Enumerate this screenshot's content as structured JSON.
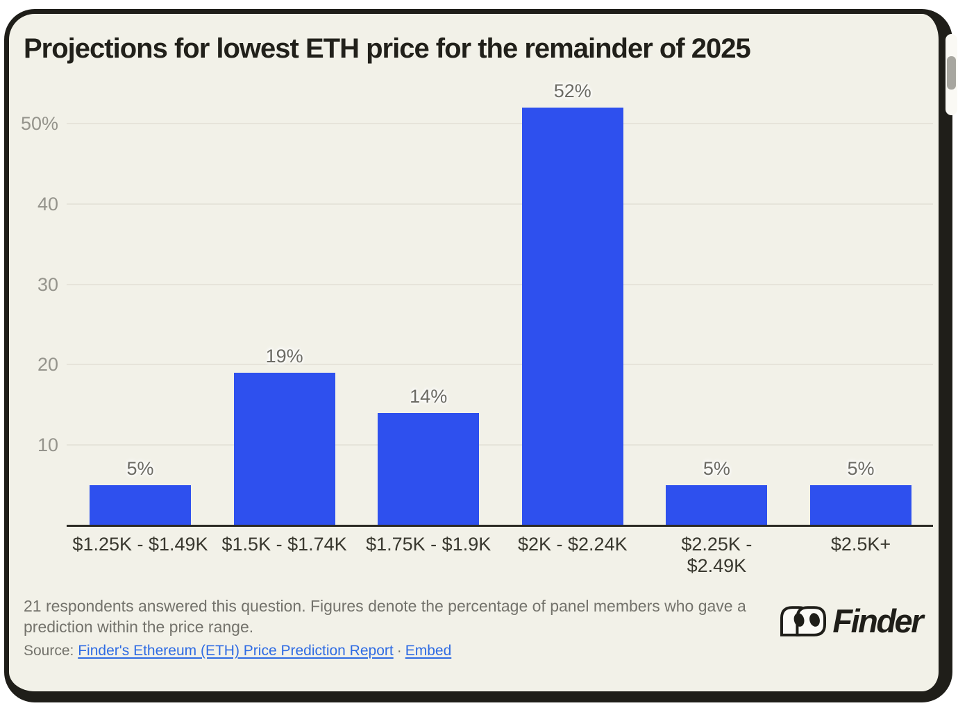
{
  "chart_data": {
    "type": "bar",
    "title": "Projections for lowest ETH price for the remainder of 2025",
    "categories": [
      "$1.25K - $1.49K",
      "$1.5K - $1.74K",
      "$1.75K - $1.9K",
      "$2K - $2.24K",
      "$2.25K - $2.49K",
      "$2.5K+"
    ],
    "category_labels": [
      "$1.25K - $1.49K",
      "$1.5K - $1.74K",
      "$1.75K - $1.9K",
      "$2K - $2.24K",
      "$2.25K -\n$2.49K",
      "$2.5K+"
    ],
    "values": [
      5,
      19,
      14,
      52,
      5,
      5
    ],
    "value_labels": [
      "5%",
      "19%",
      "14%",
      "52%",
      "5%",
      "5%"
    ],
    "y_ticks": [
      {
        "value": 50,
        "label": "50%"
      },
      {
        "value": 40,
        "label": "40"
      },
      {
        "value": 30,
        "label": "30"
      },
      {
        "value": 20,
        "label": "20"
      },
      {
        "value": 10,
        "label": "10"
      }
    ],
    "ylim": [
      0,
      55
    ],
    "xlabel": "",
    "ylabel": "",
    "grid": true,
    "legend": false,
    "bar_color": "#2E50EE"
  },
  "footer": {
    "note": "21 respondents answered this question. Figures denote the percentage of panel members who gave a prediction within the price range.",
    "source_prefix": "Source:",
    "source_link_label": "Finder's Ethereum (ETH) Price Prediction Report",
    "separator": "·",
    "embed_label": "Embed"
  },
  "logo": {
    "brand": "Finder"
  },
  "colors": {
    "page_bg": "#FFFFFF",
    "card_bg": "#F2F1E8",
    "border": "#1F1E19",
    "bar": "#2E50EE",
    "link": "#2E6BE3",
    "gridline": "#E6E4DA",
    "tick_text": "#95948C",
    "value_text": "#6C6B64",
    "xlabel_text": "#39382F",
    "note_text": "#73726B",
    "title_text": "#21201A"
  }
}
